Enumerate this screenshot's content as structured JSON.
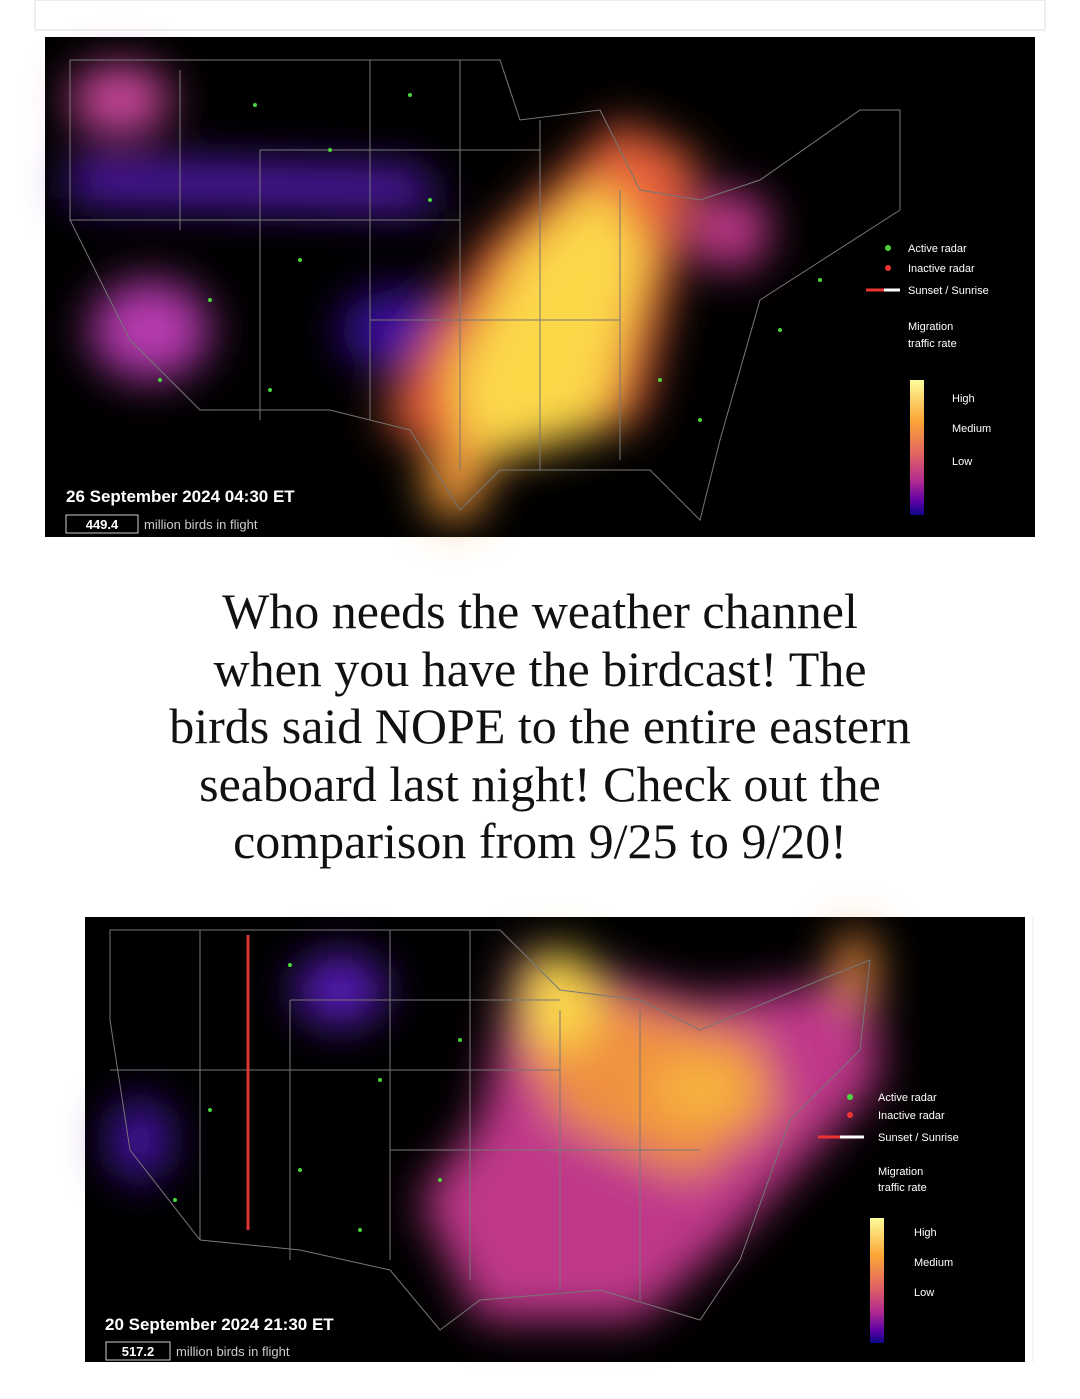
{
  "maps": [
    {
      "date": "26 September 2024 04:30 ET",
      "count": "449.4",
      "count_suffix": "million birds in flight",
      "legend": [
        "Active radar",
        "Inactive radar",
        "Sunset / Sunrise"
      ],
      "scale_title": [
        "Migration",
        "traffic rate"
      ],
      "scale_labels": [
        "High",
        "Medium",
        "Low"
      ]
    },
    {
      "date": "20 September 2024 21:30 ET",
      "count": "517.2",
      "count_suffix": "million birds in flight",
      "legend": [
        "Active radar",
        "Inactive radar",
        "Sunset / Sunrise"
      ],
      "scale_title": [
        "Migration",
        "traffic rate"
      ],
      "scale_labels": [
        "High",
        "Medium",
        "Low"
      ]
    }
  ],
  "caption": {
    "lines": [
      "Who needs the weather channel",
      "when you have the birdcast! The",
      "birds said NOPE to the entire eastern",
      "seaboard last night! Check out the",
      "comparison from 9/25 to 9/20!"
    ]
  }
}
